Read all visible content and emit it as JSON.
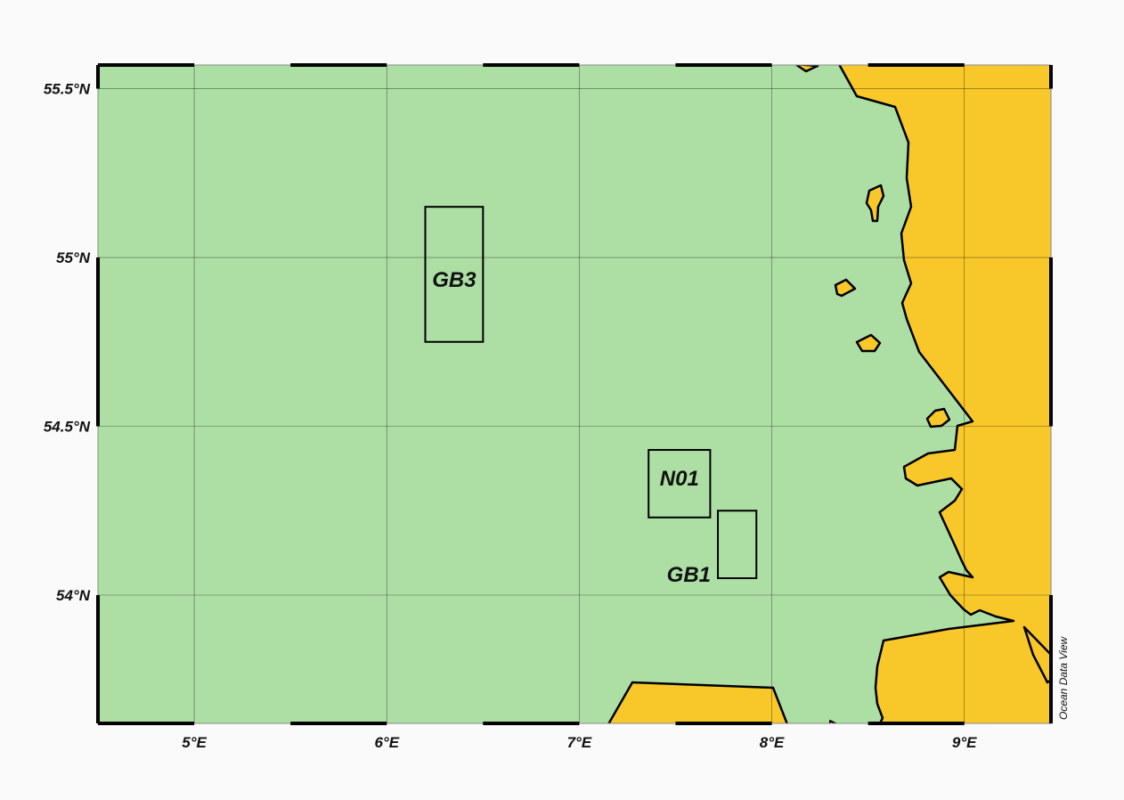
{
  "map": {
    "colors": {
      "water": "#addfa4",
      "land": "#f8c82a",
      "background": "#fafafa",
      "line": "#000000"
    },
    "extent": {
      "lon": [
        4.5,
        9.45
      ],
      "lat": [
        53.62,
        55.57
      ]
    },
    "lon_ticks": [
      {
        "value": 5,
        "label": "5°E"
      },
      {
        "value": 6,
        "label": "6°E"
      },
      {
        "value": 7,
        "label": "7°E"
      },
      {
        "value": 8,
        "label": "8°E"
      },
      {
        "value": 9,
        "label": "9°E"
      }
    ],
    "lat_ticks": [
      {
        "value": 55.5,
        "label": "55.5°N"
      },
      {
        "value": 55,
        "label": "55°N"
      },
      {
        "value": 54.5,
        "label": "54.5°N"
      },
      {
        "value": 54,
        "label": "54°N"
      }
    ],
    "regions": [
      {
        "id": "gb3",
        "label": "GB3",
        "lon": [
          6.2,
          6.5
        ],
        "lat": [
          54.75,
          55.15
        ]
      },
      {
        "id": "n01",
        "label": "N01",
        "lon": [
          7.36,
          7.68
        ],
        "lat": [
          54.23,
          54.43
        ]
      },
      {
        "id": "gb1",
        "label": "GB1",
        "lon": [
          7.72,
          7.92
        ],
        "lat": [
          54.05,
          54.25
        ]
      }
    ],
    "credit": "Ocean Data View"
  }
}
